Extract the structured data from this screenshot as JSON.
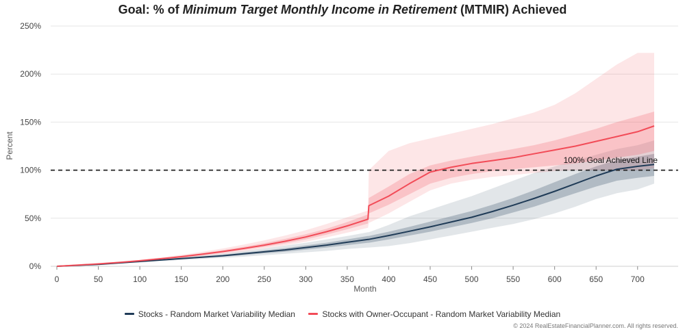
{
  "title": {
    "prefix": "Goal: % of ",
    "italic": "Minimum Target Monthly Income in Retirement",
    "suffix": " (MTMIR) Achieved"
  },
  "colors": {
    "stocks": "#1f3b57",
    "owner": "#f24b57",
    "grid": "#e6e6e6",
    "goal_line": "#222222"
  },
  "chart_data": {
    "type": "line",
    "title": "Goal: % of Minimum Target Monthly Income in Retirement (MTMIR) Achieved",
    "xlabel": "Month",
    "ylabel": "Percent",
    "xlim": [
      0,
      720
    ],
    "ylim": [
      0,
      250
    ],
    "x_ticks": [
      0,
      50,
      100,
      150,
      200,
      250,
      300,
      350,
      400,
      450,
      500,
      550,
      600,
      650,
      700
    ],
    "y_ticks": [
      0,
      50,
      100,
      150,
      200,
      250
    ],
    "y_tick_labels": [
      "0%",
      "50%",
      "100%",
      "150%",
      "200%",
      "250%"
    ],
    "grid": "horizontal",
    "legend_position": "bottom",
    "x": [
      0,
      25,
      50,
      75,
      100,
      125,
      150,
      175,
      200,
      225,
      250,
      275,
      300,
      325,
      350,
      375,
      376,
      400,
      425,
      450,
      475,
      500,
      525,
      550,
      575,
      600,
      625,
      650,
      675,
      700,
      720
    ],
    "series": [
      {
        "name": "Stocks - Random Market Variability Median",
        "color": "#1f3b57",
        "median": [
          0,
          1,
          2,
          3.5,
          5,
          6.5,
          8,
          9.5,
          11,
          13,
          15,
          17,
          19.5,
          22,
          25,
          28,
          28,
          32,
          36.5,
          41,
          46,
          51,
          57,
          63.5,
          70.5,
          78,
          86,
          94,
          101,
          104,
          106
        ],
        "band_inner_low": [
          0,
          1,
          2,
          3.3,
          4.7,
          6,
          7.4,
          8.7,
          10,
          11.7,
          13.5,
          15.2,
          17.3,
          19.5,
          22,
          24.5,
          24.5,
          28,
          32,
          36,
          40.5,
          45,
          50,
          56,
          62,
          69,
          76,
          83,
          89,
          92,
          94
        ],
        "band_inner_high": [
          0,
          1,
          2,
          3.7,
          5.3,
          7,
          8.6,
          10.3,
          12,
          14.3,
          16.5,
          18.8,
          21.7,
          24.5,
          28,
          31.5,
          31.5,
          36,
          41,
          46.5,
          52,
          57.5,
          64,
          71,
          79,
          87.5,
          96,
          104,
          110.5,
          114,
          117
        ],
        "band_outer_low": [
          0,
          0.9,
          1.8,
          3,
          4.2,
          5.4,
          6.5,
          7.6,
          8.7,
          10,
          11.5,
          13,
          14.5,
          16,
          18,
          19.5,
          19.5,
          21,
          24,
          28,
          32,
          36,
          40,
          44,
          49,
          55,
          62,
          70,
          76,
          80,
          86
        ],
        "band_outer_high": [
          0,
          1.1,
          2.3,
          4,
          5.8,
          7.6,
          9.4,
          11.3,
          13.3,
          15.8,
          18.5,
          21.5,
          24.5,
          28,
          31.5,
          35.5,
          35.5,
          43,
          52,
          59,
          66,
          73,
          81,
          89,
          97,
          104,
          110,
          116,
          122,
          126,
          131
        ]
      },
      {
        "name": "Stocks with Owner-Occupant - Random Market Variability Median",
        "color": "#f24b57",
        "median": [
          0,
          1.2,
          2.5,
          4,
          5.8,
          7.8,
          10,
          12.5,
          15.3,
          18.5,
          22,
          26,
          30.5,
          36,
          42,
          49,
          63,
          73,
          86,
          98,
          103,
          107,
          110,
          113,
          117,
          121,
          125,
          130,
          135,
          140,
          146
        ],
        "band_inner_low": [
          0,
          1.1,
          2.3,
          3.8,
          5.4,
          7.2,
          9.2,
          11.5,
          14,
          17,
          20.2,
          23.8,
          28,
          33,
          38.5,
          44.5,
          55,
          64,
          75,
          86,
          92,
          96,
          99,
          101,
          103,
          105,
          107,
          110,
          113,
          116,
          120
        ],
        "band_inner_high": [
          0,
          1.3,
          2.7,
          4.3,
          6.2,
          8.5,
          11,
          13.7,
          16.8,
          20.2,
          24,
          28.5,
          33.3,
          39,
          46,
          54,
          71,
          83,
          96,
          105,
          110,
          114,
          118,
          122,
          126,
          131,
          137,
          143,
          150,
          156,
          161
        ],
        "band_outer_low": [
          0,
          1,
          2.1,
          3.5,
          5,
          6.6,
          8.4,
          10.5,
          12.8,
          15.5,
          18.5,
          21.8,
          25.5,
          30,
          35,
          40,
          45,
          55,
          67,
          79,
          86,
          90,
          93,
          95,
          97,
          99,
          100,
          100,
          100,
          100,
          102
        ],
        "band_outer_high": [
          0,
          1.4,
          2.9,
          4.6,
          6.7,
          9.2,
          12,
          15,
          18.5,
          22.5,
          27,
          32,
          37.5,
          44,
          51,
          58,
          100,
          120,
          128,
          133,
          138,
          143,
          148,
          154,
          160,
          168,
          180,
          195,
          210,
          222,
          222
        ]
      }
    ],
    "reference_line": {
      "y": 100,
      "label": "100% Goal Achieved Line",
      "style": "dashed"
    }
  },
  "copyright": "© 2024 RealEstateFinancialPlanner.com. All rights reserved."
}
